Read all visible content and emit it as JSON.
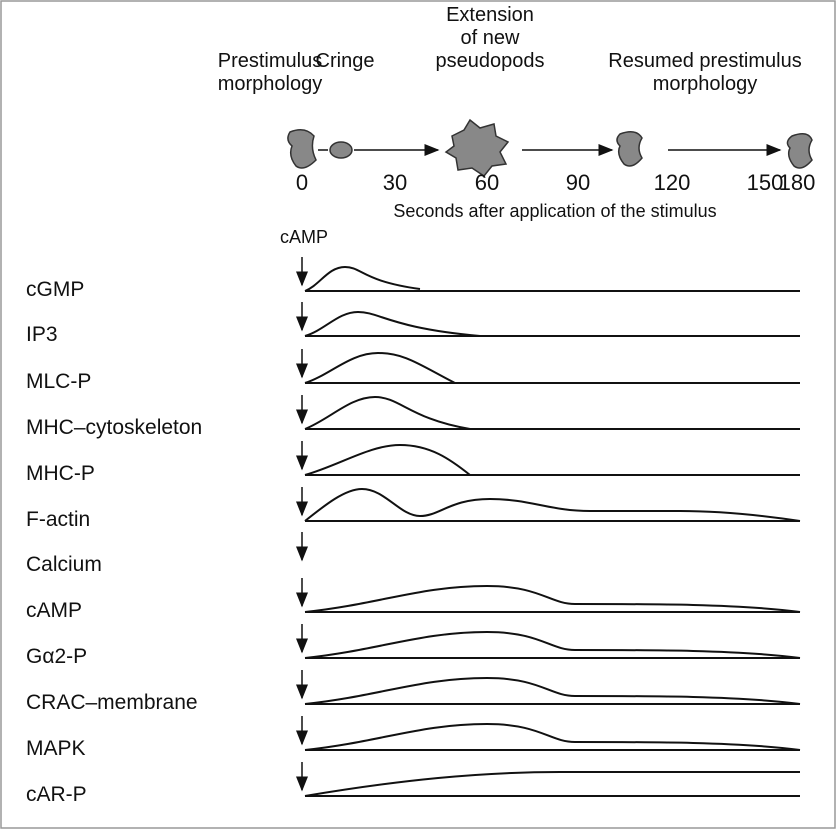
{
  "stages": [
    {
      "lines": [
        "Prestimulus",
        "morphology"
      ]
    },
    {
      "lines": [
        "Cringe"
      ]
    },
    {
      "lines": [
        "Extension",
        "of new",
        "pseudopods"
      ]
    },
    {
      "lines": [
        "Resumed  prestimulus",
        "morphology"
      ]
    }
  ],
  "time_ticks": [
    0,
    30,
    60,
    90,
    120,
    150,
    180
  ],
  "time_axis_label": "Seconds after application of the stimulus",
  "stimulus_label": "cAMP",
  "rows": [
    "cGMP",
    "IP3",
    "MLC-P",
    "MHC–cytoskeleton",
    "MHC-P",
    "F-actin",
    "Calcium",
    "cAMP",
    "Gα2-P",
    "CRAC–membrane",
    "MAPK",
    "cAR-P"
  ]
}
